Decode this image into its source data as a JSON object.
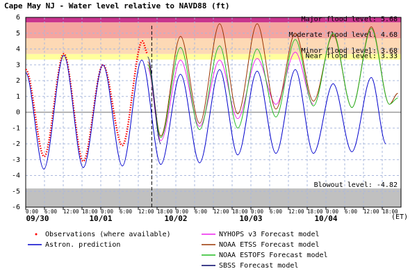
{
  "chart_data": {
    "type": "line",
    "title": "Cape May NJ  -  Water level relative to NAVD88 (ft)",
    "xlim": [
      0,
      120
    ],
    "ylim": [
      -6,
      6
    ],
    "yticks": [
      -6,
      -5,
      -4,
      -3,
      -2,
      -1,
      0,
      1,
      2,
      3,
      4,
      5,
      6
    ],
    "xticks": [
      {
        "value": 0,
        "label": "0:00"
      },
      {
        "value": 6,
        "label": "6:00"
      },
      {
        "value": 12,
        "label": "12:00"
      },
      {
        "value": 18,
        "label": "18:00"
      },
      {
        "value": 24,
        "label": "0:00"
      },
      {
        "value": 30,
        "label": "6:00"
      },
      {
        "value": 36,
        "label": "12:00"
      },
      {
        "value": 42,
        "label": "18:00"
      },
      {
        "value": 48,
        "label": "0:00"
      },
      {
        "value": 54,
        "label": "6:00"
      },
      {
        "value": 60,
        "label": "12:00"
      },
      {
        "value": 66,
        "label": "18:00"
      },
      {
        "value": 72,
        "label": "0:00"
      },
      {
        "value": 78,
        "label": "6:00"
      },
      {
        "value": 84,
        "label": "12:00"
      },
      {
        "value": 90,
        "label": "18:00"
      },
      {
        "value": 96,
        "label": "0:00"
      },
      {
        "value": 102,
        "label": "6:00"
      },
      {
        "value": 108,
        "label": "12:00"
      },
      {
        "value": 114,
        "label": "18:00"
      }
    ],
    "date_labels": [
      {
        "value": 0,
        "label": "09/30"
      },
      {
        "value": 24,
        "label": "10/01"
      },
      {
        "value": 48,
        "label": "10/02"
      },
      {
        "value": 72,
        "label": "10/03"
      },
      {
        "value": 96,
        "label": "10/04"
      }
    ],
    "time_zone_label": "(ET)",
    "forecast_start": 40.3,
    "grid": true,
    "thresholds": [
      {
        "value": 5.68,
        "label": "Major flood level: 5.68",
        "color": "#c8358e"
      },
      {
        "value": 4.68,
        "label": "Moderate flood level: 4.68",
        "color": "#f5a5a0"
      },
      {
        "value": 3.68,
        "label": "Minor flood level: 3.68",
        "color": "#fdd9b5"
      },
      {
        "value": 3.33,
        "label": "Near flood level: 3.33",
        "color": "#ffff9c"
      },
      {
        "value": -4.82,
        "label": "Blowout level: -4.82",
        "color": "#c0c0c0"
      }
    ],
    "series": [
      {
        "name": "Observations (where available)",
        "color": "#ff0000",
        "style": "dotted",
        "x": [
          0,
          5.9,
          12.2,
          18.4,
          24.7,
          30.9,
          37.3,
          39
        ],
        "values": [
          2.7,
          -2.8,
          3.7,
          -3.1,
          3.0,
          -2.1,
          4.5,
          3.7
        ]
      },
      {
        "name": "Astron. prediction",
        "color": "#0000cc",
        "style": "solid",
        "x": [
          0,
          5.8,
          12.2,
          18.4,
          24.7,
          30.9,
          37.1,
          43.2,
          49.5,
          55.6,
          62,
          67.8,
          74,
          80,
          86.2,
          92,
          98.3,
          104.3,
          110.5,
          115.2
        ],
        "values": [
          2.5,
          -3.6,
          3.6,
          -3.5,
          3.0,
          -3.4,
          3.3,
          -3.3,
          2.4,
          -3.2,
          2.7,
          -2.7,
          2.6,
          -2.6,
          2.7,
          -2.6,
          1.8,
          -2.5,
          2.2,
          -2.0
        ]
      },
      {
        "name": "NYHOPS v3 Forecast model",
        "color": "#ee22ee",
        "style": "solid",
        "x": [
          39,
          43.2,
          49.5,
          55.6,
          62,
          67.8,
          74,
          80,
          86.2,
          92
        ],
        "values": [
          2.8,
          -1.8,
          3.3,
          -0.9,
          3.3,
          -0.4,
          3.4,
          0.5,
          3.8,
          0.5
        ]
      },
      {
        "name": "NOAA ETSS Forecast model",
        "color": "#993300",
        "style": "solid",
        "x": [
          39,
          43.2,
          49.5,
          55.6,
          62,
          67.8,
          74,
          80,
          86.2,
          92,
          98.3,
          104.3,
          110.5,
          116.3,
          119
        ],
        "values": [
          3.2,
          -1.5,
          4.8,
          -0.7,
          5.6,
          -0.1,
          5.6,
          0.2,
          5.0,
          0.7,
          4.9,
          0.3,
          5.4,
          0.5,
          1.2
        ]
      },
      {
        "name": "NOAA ESTOFS Forecast model",
        "color": "#22bb22",
        "style": "solid",
        "x": [
          39,
          43.2,
          49.5,
          55.6,
          62,
          67.8,
          74,
          80,
          86.2,
          92,
          98.3,
          104.3,
          110.5,
          116.3,
          119
        ],
        "values": [
          3.0,
          -1.6,
          4.1,
          -1.1,
          4.2,
          -1.0,
          4.0,
          -0.3,
          4.6,
          0.4,
          5.0,
          0.3,
          5.3,
          0.5,
          0.9
        ]
      },
      {
        "name": "SBSS Forecast model",
        "color": "#000066",
        "style": "solid",
        "x": [
          39,
          43.2
        ],
        "values": [
          3.5,
          -2.0
        ]
      }
    ]
  }
}
